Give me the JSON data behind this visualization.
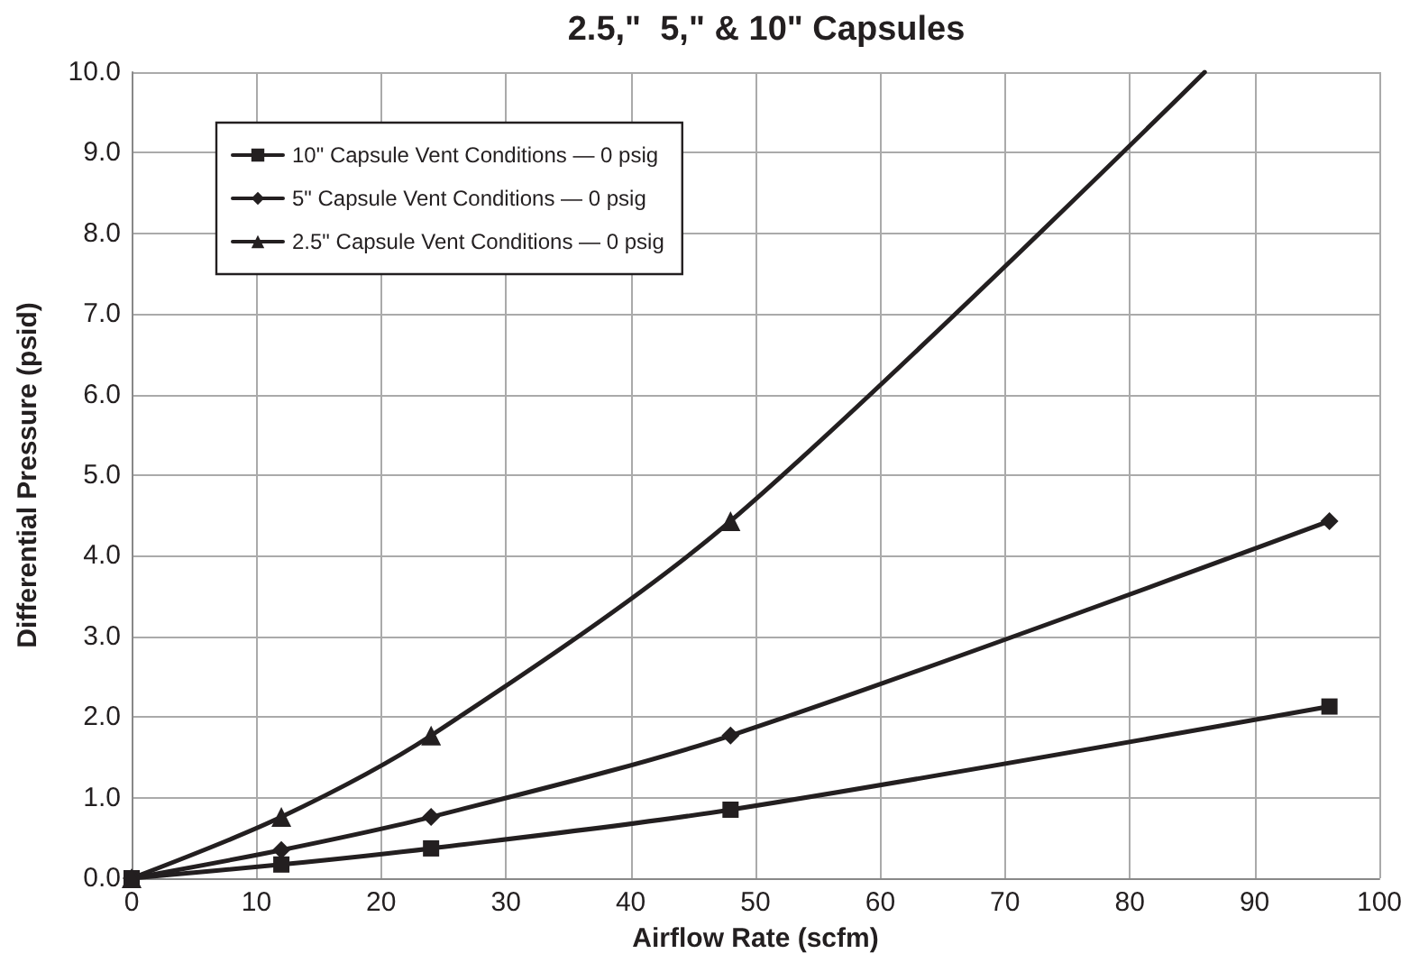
{
  "chart_data": {
    "type": "line",
    "title": "2.5,\"  5,\" & 10\" Capsules",
    "xlabel": "Airflow Rate (scfm)",
    "ylabel": "Differential Pressure (psid)",
    "xlim": [
      0,
      100
    ],
    "xticks": [
      0,
      10,
      20,
      30,
      40,
      50,
      60,
      70,
      80,
      90,
      100
    ],
    "ylim": [
      0,
      10
    ],
    "yticks": [
      {
        "value": 0,
        "label": "0.0"
      },
      {
        "value": 1,
        "label": "1.0"
      },
      {
        "value": 2,
        "label": "2.0"
      },
      {
        "value": 3,
        "label": "3.0"
      },
      {
        "value": 4,
        "label": "4.0"
      },
      {
        "value": 5,
        "label": "5.0"
      },
      {
        "value": 6,
        "label": "6.0"
      },
      {
        "value": 7,
        "label": "7.0"
      },
      {
        "value": 8,
        "label": "8.0"
      },
      {
        "value": 9,
        "label": "9.0"
      },
      {
        "value": 10,
        "label": "10.0"
      }
    ],
    "grid": true,
    "legend": "top left",
    "line_style": "solid",
    "series": [
      {
        "name": "10\" Capsule Vent Conditions — 0 psig",
        "color": "#231f20",
        "marker": "square",
        "x": [
          0,
          12,
          24,
          48,
          96
        ],
        "values": [
          0,
          0.17,
          0.37,
          0.85,
          2.13
        ]
      },
      {
        "name": "5\" Capsule Vent Conditions — 0 psig",
        "color": "#231f20",
        "marker": "diamond",
        "x": [
          0,
          12,
          24,
          48,
          96
        ],
        "values": [
          0,
          0.35,
          0.76,
          1.77,
          4.43
        ]
      },
      {
        "name": "2.5\" Capsule Vent Conditions — 0 psig",
        "color": "#231f20",
        "marker": "triangle",
        "x": [
          0,
          12,
          24,
          48,
          86
        ],
        "values": [
          0,
          0.76,
          1.77,
          4.43,
          10.0
        ]
      }
    ]
  }
}
